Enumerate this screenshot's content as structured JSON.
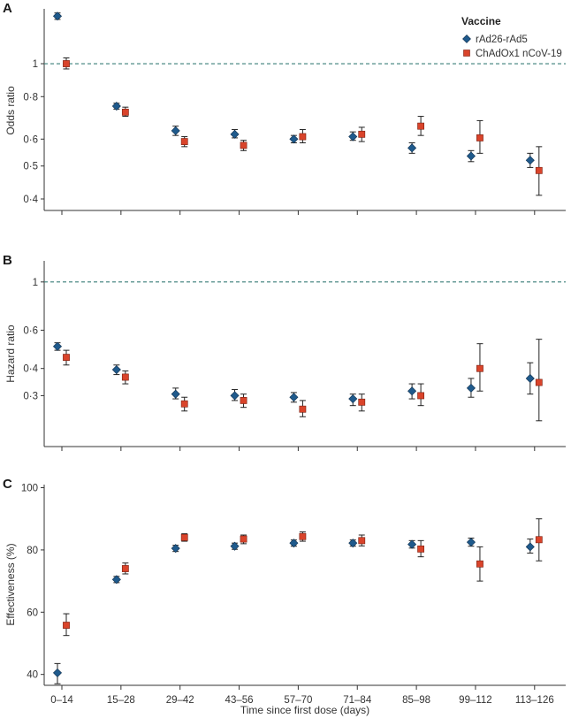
{
  "chart_data": [
    {
      "type": "scatter",
      "panel": "A",
      "ylabel": "Odds ratio",
      "scale": "log",
      "ylim": [
        0.37,
        1.45
      ],
      "yticks": [
        0.4,
        0.5,
        0.6,
        0.8,
        1
      ],
      "ytick_labels": [
        "0·4",
        "0·5",
        "0·6",
        "0·8",
        "1"
      ],
      "reference_line": 1,
      "series": [
        {
          "name": "rAd26-rAd5",
          "values": [
            1.38,
            0.75,
            0.635,
            0.62,
            0.6,
            0.61,
            0.565,
            0.535,
            0.52
          ],
          "low": [
            1.35,
            0.735,
            0.615,
            0.605,
            0.585,
            0.595,
            0.545,
            0.515,
            0.495
          ],
          "high": [
            1.41,
            0.765,
            0.655,
            0.64,
            0.615,
            0.63,
            0.585,
            0.555,
            0.545
          ]
        },
        {
          "name": "ChAdOx1 nCoV-19",
          "values": [
            1.0,
            0.72,
            0.59,
            0.575,
            0.61,
            0.62,
            0.655,
            0.605,
            0.485
          ],
          "low": [
            0.965,
            0.7,
            0.57,
            0.555,
            0.585,
            0.59,
            0.615,
            0.545,
            0.41
          ],
          "high": [
            1.04,
            0.745,
            0.61,
            0.595,
            0.64,
            0.65,
            0.7,
            0.68,
            0.57
          ]
        }
      ]
    },
    {
      "type": "scatter",
      "panel": "B",
      "ylabel": "Hazard ratio",
      "scale": "log",
      "ylim": [
        0.175,
        1.25
      ],
      "yticks": [
        0.3,
        0.4,
        0.6,
        1
      ],
      "ytick_labels": [
        "0·3",
        "0·4",
        "0·6",
        "1"
      ],
      "reference_line": 1,
      "series": [
        {
          "name": "rAd26-rAd5",
          "values": [
            0.505,
            0.395,
            0.305,
            0.3,
            0.295,
            0.29,
            0.315,
            0.325,
            0.36
          ],
          "low": [
            0.485,
            0.375,
            0.29,
            0.285,
            0.28,
            0.27,
            0.29,
            0.295,
            0.305
          ],
          "high": [
            0.525,
            0.415,
            0.325,
            0.32,
            0.31,
            0.305,
            0.34,
            0.36,
            0.425
          ]
        },
        {
          "name": "ChAdOx1 nCoV-19",
          "values": [
            0.45,
            0.365,
            0.275,
            0.285,
            0.26,
            0.28,
            0.3,
            0.4,
            0.345
          ],
          "low": [
            0.415,
            0.34,
            0.255,
            0.265,
            0.24,
            0.255,
            0.27,
            0.315,
            0.23
          ],
          "high": [
            0.485,
            0.39,
            0.295,
            0.305,
            0.285,
            0.305,
            0.34,
            0.52,
            0.545
          ]
        }
      ]
    },
    {
      "type": "scatter",
      "panel": "C",
      "ylabel": "Effectiveness (%)",
      "xlabel": "Time since first dose (days)",
      "scale": "linear",
      "ylim": [
        36.5,
        101
      ],
      "yticks": [
        40,
        60,
        80,
        100
      ],
      "ytick_labels": [
        "40",
        "60",
        "80",
        "100"
      ],
      "series": [
        {
          "name": "rAd26-rAd5",
          "values": [
            40.5,
            70.5,
            80.5,
            81.2,
            82.2,
            82.2,
            81.8,
            82.5,
            81.0
          ],
          "low": [
            37.0,
            69.5,
            79.5,
            80.2,
            81.2,
            81.2,
            80.6,
            81.2,
            79.0
          ],
          "high": [
            43.5,
            71.5,
            81.5,
            82.2,
            83.2,
            83.2,
            83.0,
            83.8,
            83.5
          ]
        },
        {
          "name": "ChAdOx1 nCoV-19",
          "values": [
            55.8,
            74.0,
            84.0,
            83.5,
            84.3,
            83.0,
            80.3,
            75.5,
            83.3
          ],
          "low": [
            52.5,
            72.3,
            82.8,
            82.0,
            82.8,
            81.3,
            77.8,
            70.0,
            76.5
          ],
          "high": [
            59.5,
            75.8,
            85.2,
            84.8,
            85.8,
            84.8,
            83.0,
            81.0,
            90.0
          ]
        }
      ]
    }
  ],
  "categories": [
    "0–14",
    "15–28",
    "29–42",
    "43–56",
    "57–70",
    "71–84",
    "85–98",
    "99–112",
    "113–126"
  ],
  "legend": {
    "title": "Vaccine",
    "placement": "top-right",
    "items": [
      {
        "label": "rAd26-rAd5",
        "marker": "diamond",
        "color": "#1f5a8c"
      },
      {
        "label": "ChAdOx1 nCoV-19",
        "marker": "square",
        "color": "#d9442b"
      }
    ]
  },
  "colors": {
    "series1": "#1f5a8c",
    "series2": "#d9442b",
    "reference": "#3b7f7a",
    "axis": "#333333"
  }
}
